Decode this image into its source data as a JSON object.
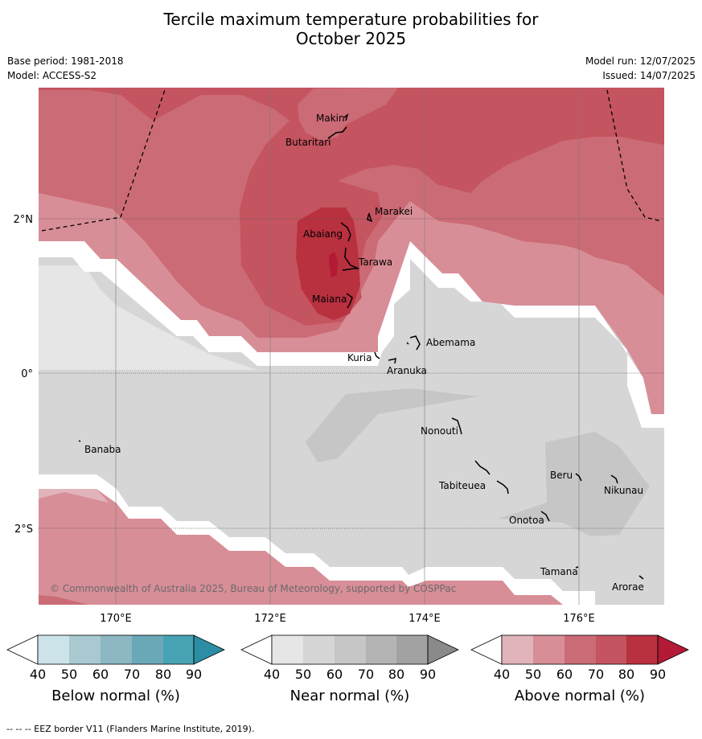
{
  "title_line1": "Tercile maximum temperature probabilities for",
  "title_line2": "October 2025",
  "base_period": "Base period: 1981-2018",
  "model": "Model: ACCESS-S2",
  "model_run": "Model run: 12/07/2025",
  "issued": "Issued: 14/07/2025",
  "copyright": "© Commonwealth of Australia 2025, Bureau of Meteorology, supported by COSPPac",
  "footer": "--  --  -- EEZ border V11 (Flanders Marine Institute, 2019).",
  "x_ticks": [
    "170°E",
    "172°E",
    "174°E",
    "176°E"
  ],
  "y_ticks": [
    "2°N",
    "0°",
    "2°S"
  ],
  "places": [
    "Makin",
    "Butaritari",
    "Marakei",
    "Abaiang",
    "Tarawa",
    "Maiana",
    "Abemama",
    "Kuria",
    "Aranuka",
    "Nonouti",
    "Banaba",
    "Beru",
    "Nikunau",
    "Tabiteuea",
    "Onotoa",
    "Tamana",
    "Arorae"
  ],
  "colorbars": [
    {
      "label": "Below normal (%)",
      "ticks": [
        "40",
        "50",
        "60",
        "70",
        "80",
        "90"
      ],
      "colors": [
        "#cde3ea",
        "#a9c9d1",
        "#8cb7c3",
        "#6aa8b8",
        "#47a3b4",
        "#2c8ea4"
      ]
    },
    {
      "label": "Near normal (%)",
      "ticks": [
        "40",
        "50",
        "60",
        "70",
        "80",
        "90"
      ],
      "colors": [
        "#e6e6e6",
        "#d6d6d6",
        "#c6c6c6",
        "#b4b4b4",
        "#a2a2a2",
        "#8a8a8a"
      ]
    },
    {
      "label": "Above normal (%)",
      "ticks": [
        "40",
        "50",
        "60",
        "70",
        "80",
        "90"
      ],
      "colors": [
        "#e1b4bb",
        "#d88e97",
        "#cb6b76",
        "#c4545f",
        "#b9303f",
        "#b21a35"
      ]
    }
  ],
  "colors": {
    "above_40": "#e1b4bb",
    "above_50": "#d88e97",
    "above_60": "#cb6b76",
    "above_70": "#c4545f",
    "above_80": "#b9303f",
    "above_90": "#b21a35",
    "near_40": "#e6e6e6",
    "near_50": "#d6d6d6",
    "near_60": "#c6c6c6"
  }
}
